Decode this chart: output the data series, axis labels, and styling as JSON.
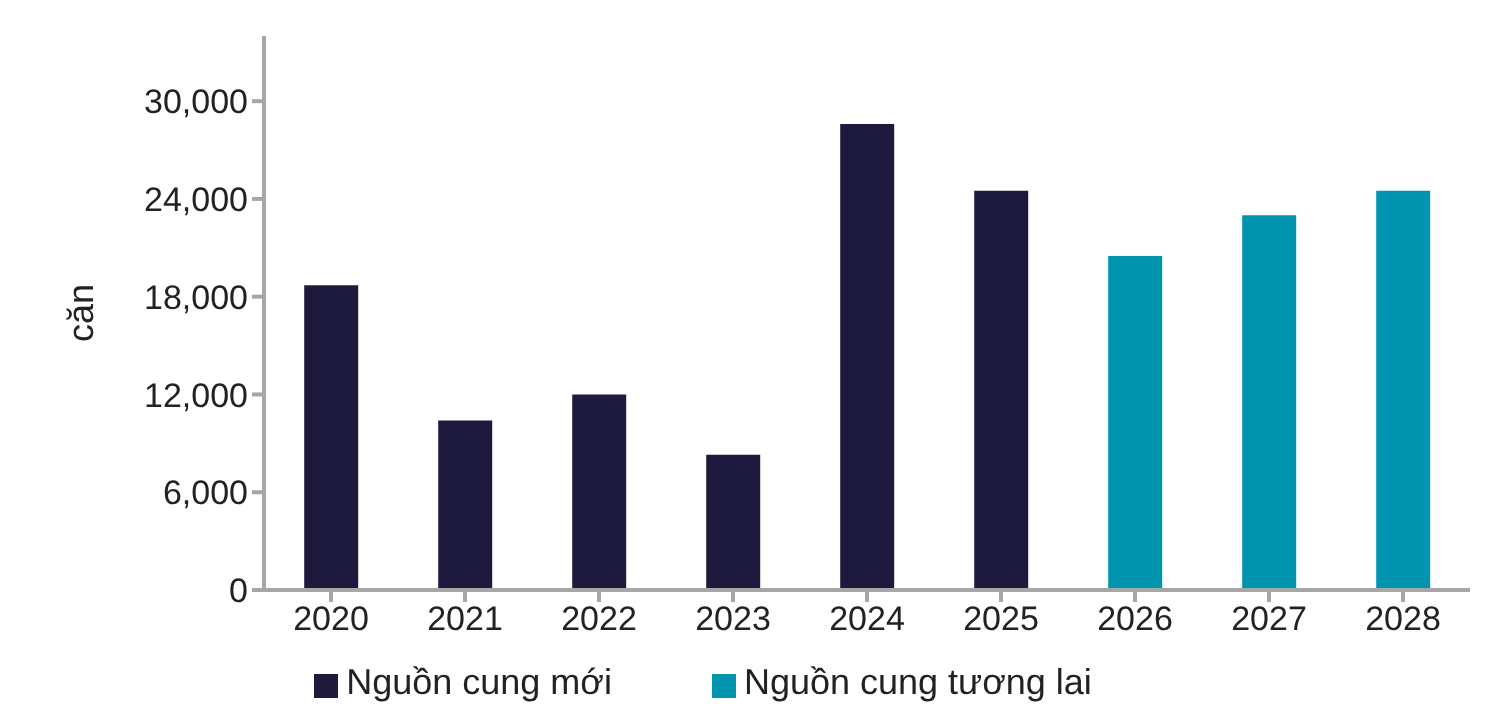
{
  "chart_data": {
    "type": "bar",
    "ylabel": "căn",
    "categories": [
      "2020",
      "2021",
      "2022",
      "2023",
      "2024",
      "2025",
      "2026",
      "2027",
      "2028"
    ],
    "series": [
      {
        "name": "Nguồn cung mới",
        "color": "#1e1a3e",
        "values": [
          18700,
          10400,
          12000,
          8300,
          28600,
          24500,
          null,
          null,
          null
        ]
      },
      {
        "name": "Nguồn cung tương lai",
        "color": "#0094ae",
        "values": [
          null,
          null,
          null,
          null,
          null,
          null,
          20500,
          23000,
          24500
        ]
      }
    ],
    "stacked": true,
    "ylim": [
      0,
      34000
    ],
    "yticks": [
      {
        "value": 0,
        "label": "0"
      },
      {
        "value": 6000,
        "label": "6,000"
      },
      {
        "value": 12000,
        "label": "12,000"
      },
      {
        "value": 18000,
        "label": "18,000"
      },
      {
        "value": 24000,
        "label": "24,000"
      },
      {
        "value": 30000,
        "label": "30,000"
      }
    ],
    "grid": false,
    "legend": "bottom"
  }
}
